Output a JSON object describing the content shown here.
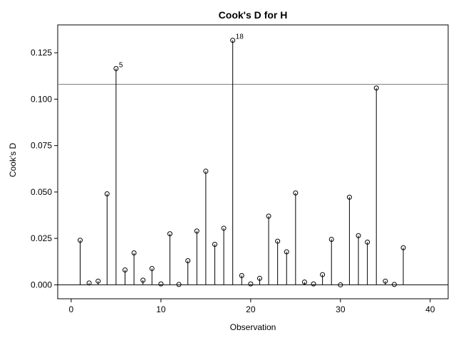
{
  "chart_data": {
    "type": "scatter",
    "title": "Cook's D for H",
    "xlabel": "Observation",
    "ylabel": "Cook's D",
    "xlim": [
      -1.5,
      42
    ],
    "ylim": [
      -0.0075,
      0.14
    ],
    "x_ticks": [
      0,
      10,
      20,
      30,
      40
    ],
    "y_ticks": [
      0.0,
      0.025,
      0.05,
      0.075,
      0.1,
      0.125
    ],
    "x_tick_labels": [
      "0",
      "10",
      "20",
      "30",
      "40"
    ],
    "y_tick_labels": [
      "0.000",
      "0.025",
      "0.050",
      "0.075",
      "0.100",
      "0.125"
    ],
    "reference_line": 0.108,
    "grid": false,
    "style": "needle",
    "x": [
      1,
      2,
      3,
      4,
      5,
      6,
      7,
      8,
      9,
      10,
      11,
      12,
      13,
      14,
      15,
      16,
      17,
      18,
      19,
      20,
      21,
      22,
      23,
      24,
      25,
      26,
      27,
      28,
      29,
      30,
      31,
      32,
      33,
      34,
      35,
      36,
      37
    ],
    "y": [
      0.024,
      0.001,
      0.002,
      0.049,
      0.1165,
      0.008,
      0.0172,
      0.0025,
      0.0088,
      0.0005,
      0.0275,
      0.0002,
      0.013,
      0.029,
      0.0612,
      0.0218,
      0.0305,
      0.1317,
      0.005,
      0.0005,
      0.0035,
      0.037,
      0.0235,
      0.0178,
      0.0495,
      0.0015,
      0.0005,
      0.0055,
      0.0245,
      0.0,
      0.0472,
      0.0265,
      0.023,
      0.106,
      0.002,
      0.0002,
      0.02
    ],
    "point_labels": [
      {
        "x": 5,
        "text": "5"
      },
      {
        "x": 18,
        "text": "18"
      }
    ]
  }
}
